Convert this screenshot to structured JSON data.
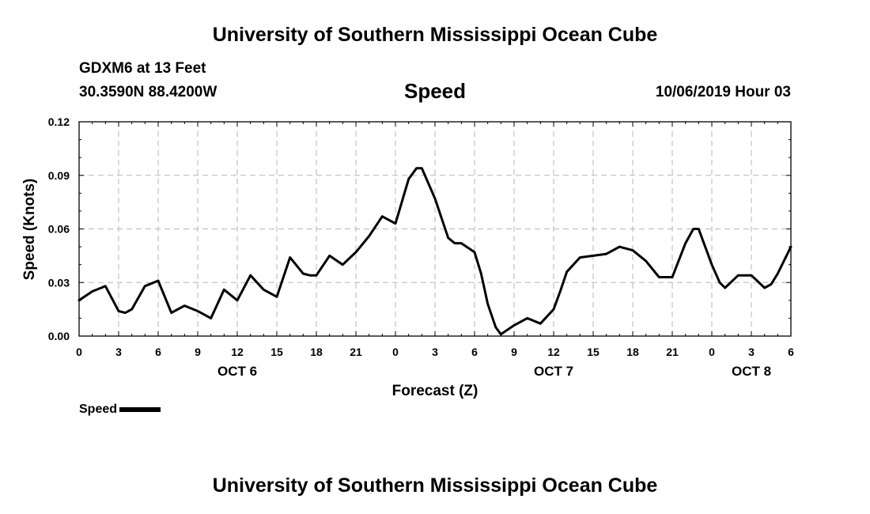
{
  "page": {
    "top_title": "University of Southern Mississippi Ocean Cube",
    "bottom_title": "University of Southern Mississippi Ocean Cube",
    "station": "GDXM6 at 13 Feet",
    "coords": "30.3590N 88.4200W",
    "variable": "Speed",
    "timestamp": "10/06/2019 Hour 03"
  },
  "chart_data": {
    "type": "line",
    "title": "Speed",
    "xlabel": "Forecast (Z)",
    "ylabel": "Speed (Knots)",
    "xlim": [
      0,
      54
    ],
    "ylim": [
      0,
      0.12
    ],
    "grid": true,
    "x_ticks": [
      0,
      3,
      6,
      9,
      12,
      15,
      18,
      21,
      24,
      27,
      30,
      33,
      36,
      39,
      42,
      45,
      48,
      51,
      54
    ],
    "x_tick_labels": [
      "0",
      "3",
      "6",
      "9",
      "12",
      "15",
      "18",
      "21",
      "0",
      "3",
      "6",
      "9",
      "12",
      "15",
      "18",
      "21",
      "0",
      "3",
      "6"
    ],
    "y_ticks": [
      0,
      0.03,
      0.06,
      0.09,
      0.12
    ],
    "y_tick_labels": [
      "0.00",
      "0.03",
      "0.06",
      "0.09",
      "0.12"
    ],
    "day_labels": [
      {
        "x": 12,
        "label": "OCT 6"
      },
      {
        "x": 36,
        "label": "OCT 7"
      },
      {
        "x": 51,
        "label": "OCT 8"
      }
    ],
    "legend": {
      "label": "Speed",
      "position": "bottom-left"
    },
    "series": [
      {
        "name": "Speed",
        "color": "#000000",
        "x": [
          0,
          1,
          2,
          3,
          3.5,
          4,
          5,
          6,
          7,
          8,
          9,
          10,
          11,
          12,
          13,
          14,
          15,
          16,
          17,
          17.5,
          18,
          19,
          20,
          21,
          22,
          23,
          24,
          25,
          25.6,
          26,
          27,
          28,
          28.5,
          29,
          30,
          30.5,
          31,
          31.6,
          32,
          33,
          34,
          35,
          36,
          36.5,
          37,
          38,
          39,
          40,
          41,
          42,
          43,
          44,
          45,
          46,
          46.6,
          47,
          48,
          48.6,
          49,
          50,
          51,
          52,
          52.5,
          53,
          54
        ],
        "values": [
          0.02,
          0.025,
          0.028,
          0.014,
          0.013,
          0.015,
          0.028,
          0.031,
          0.013,
          0.017,
          0.014,
          0.01,
          0.026,
          0.02,
          0.034,
          0.026,
          0.022,
          0.044,
          0.035,
          0.034,
          0.034,
          0.045,
          0.04,
          0.047,
          0.056,
          0.067,
          0.063,
          0.088,
          0.094,
          0.094,
          0.077,
          0.055,
          0.052,
          0.052,
          0.047,
          0.035,
          0.018,
          0.005,
          0.001,
          0.006,
          0.01,
          0.007,
          0.015,
          0.025,
          0.036,
          0.044,
          0.045,
          0.046,
          0.05,
          0.048,
          0.042,
          0.033,
          0.033,
          0.052,
          0.06,
          0.06,
          0.04,
          0.03,
          0.027,
          0.034,
          0.034,
          0.027,
          0.029,
          0.035,
          0.05
        ]
      }
    ]
  }
}
